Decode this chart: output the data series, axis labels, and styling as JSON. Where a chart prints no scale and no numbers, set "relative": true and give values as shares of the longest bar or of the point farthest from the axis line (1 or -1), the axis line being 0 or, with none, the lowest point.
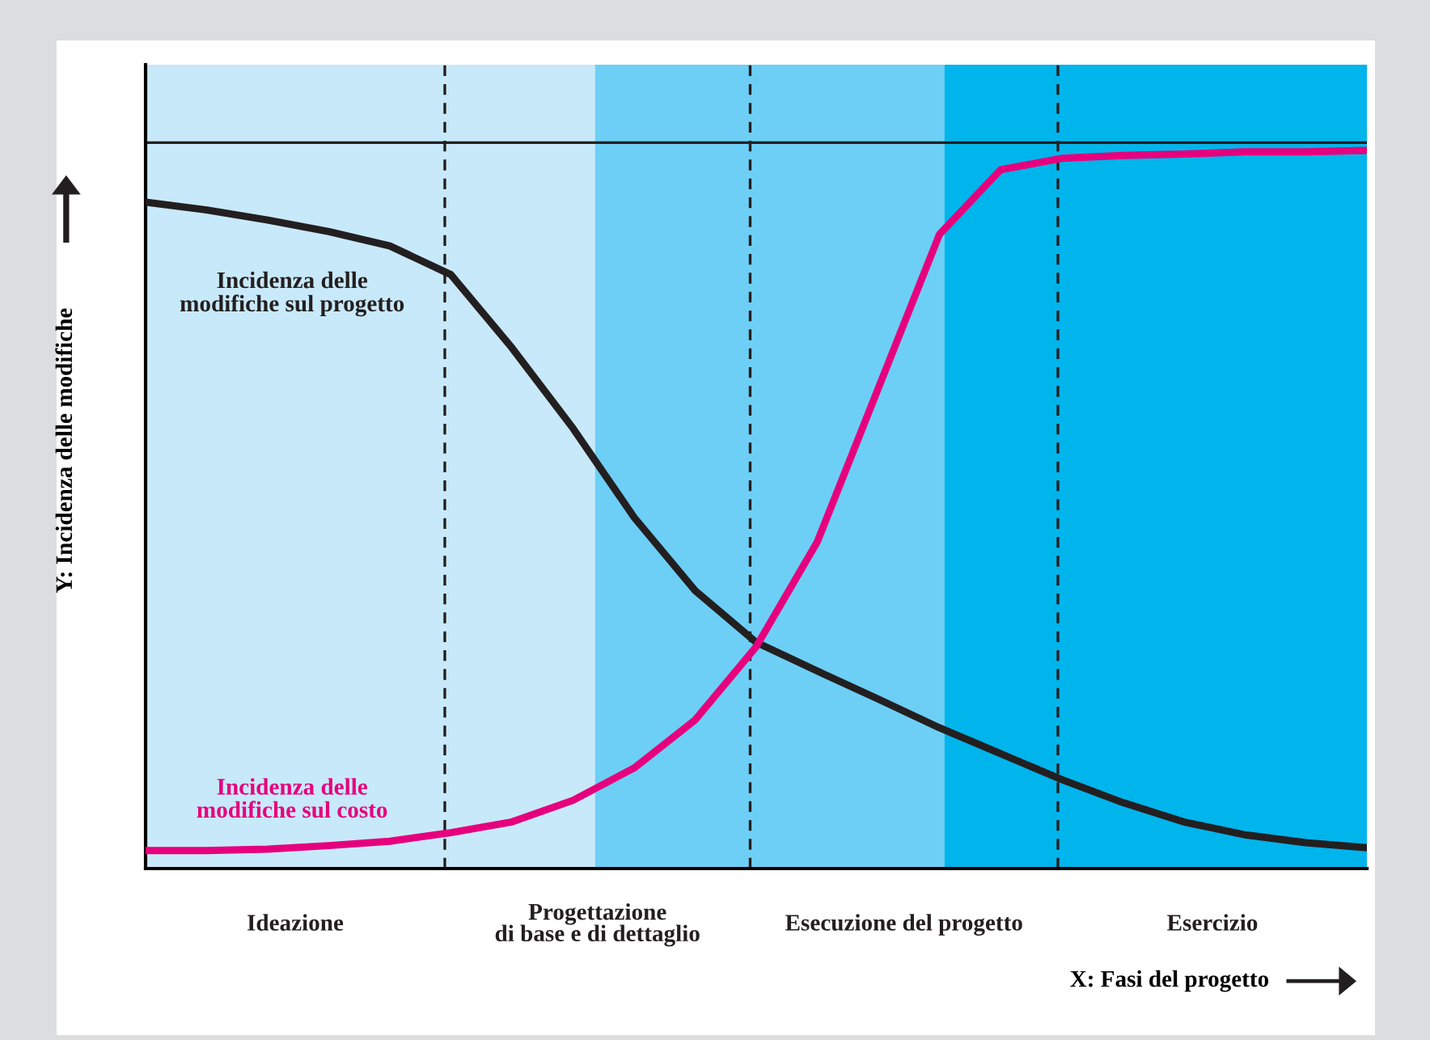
{
  "chart_data": {
    "type": "line",
    "relative": true,
    "xlabel": "X: Fasi del progetto",
    "ylabel": "Y: Incidenza delle modifiche",
    "legend": false,
    "line_style": "solid",
    "categories": [
      null,
      null,
      null,
      null,
      null,
      null,
      null,
      null,
      null,
      null,
      null,
      null,
      null,
      null,
      null,
      null,
      null,
      null,
      null,
      null,
      null
    ],
    "series": [
      {
        "name": "Incidenza delle\nmodifiche sul progetto",
        "color": "#231f20",
        "values": [
          0.928,
          0.917,
          0.903,
          0.887,
          0.867,
          0.827,
          0.725,
          0.613,
          0.489,
          0.387,
          0.315,
          0.275,
          0.236,
          0.196,
          0.16,
          0.124,
          0.092,
          0.065,
          0.047,
          0.036,
          0.029
        ]
      },
      {
        "name": "Incidenza delle\nmodifiche sul costo",
        "color": "#e6007e",
        "values": [
          0.025,
          0.025,
          0.027,
          0.032,
          0.038,
          0.05,
          0.065,
          0.095,
          0.14,
          0.207,
          0.309,
          0.455,
          0.669,
          0.883,
          0.973,
          0.989,
          0.993,
          0.995,
          0.998,
          0.998,
          1
        ]
      }
    ],
    "annotations": [
      "Ideazione",
      "Progettazione\ndi base e di dettaglio",
      "Esecuzione del progetto",
      "Esercizio"
    ]
  }
}
